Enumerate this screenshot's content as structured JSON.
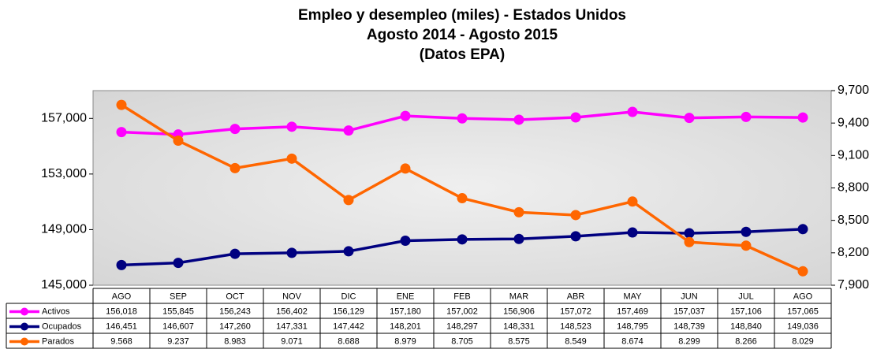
{
  "chart_data": {
    "type": "line",
    "title_lines": [
      "Empleo y desempleo (miles) - Estados Unidos",
      "Agosto 2014 - Agosto 2015",
      "(Datos EPA)"
    ],
    "categories": [
      "AGO",
      "SEP",
      "OCT",
      "NOV",
      "DIC",
      "ENE",
      "FEB",
      "MAR",
      "ABR",
      "MAY",
      "JUN",
      "JUL",
      "AGO"
    ],
    "series": [
      {
        "name": "Activos",
        "color": "#ff00ff",
        "values": [
          156018,
          155845,
          156243,
          156402,
          156129,
          157180,
          157002,
          156906,
          157072,
          157469,
          157037,
          157106,
          157065
        ],
        "value_labels": [
          "156,018",
          "155,845",
          "156,243",
          "156,402",
          "156,129",
          "157,180",
          "157,002",
          "156,906",
          "157,072",
          "157,469",
          "157,037",
          "157,106",
          "157,065"
        ]
      },
      {
        "name": "Ocupados",
        "color": "#000080",
        "values": [
          146451,
          146607,
          147260,
          147331,
          147442,
          148201,
          148297,
          148331,
          148523,
          148795,
          148739,
          148840,
          149036
        ],
        "value_labels": [
          "146,451",
          "146,607",
          "147,260",
          "147,331",
          "147,442",
          "148,201",
          "148,297",
          "148,331",
          "148,523",
          "148,795",
          "148,739",
          "148,840",
          "149,036"
        ]
      },
      {
        "name": "Parados",
        "color": "#ff6600",
        "axis": "y2",
        "values": [
          9568,
          9237,
          8983,
          9071,
          8688,
          8979,
          8705,
          8575,
          8549,
          8674,
          8299,
          8266,
          8029
        ],
        "value_labels": [
          "9.568",
          "9.237",
          "8.983",
          "9.071",
          "8.688",
          "8.979",
          "8.705",
          "8.575",
          "8.549",
          "8.674",
          "8.299",
          "8.266",
          "8.029"
        ]
      }
    ],
    "ylim": [
      145000,
      159000
    ],
    "yticks": [
      {
        "value": 145000,
        "label": "145,000"
      },
      {
        "value": 149000,
        "label": "149,000"
      },
      {
        "value": 153000,
        "label": "153,000"
      },
      {
        "value": 157000,
        "label": "157,000"
      }
    ],
    "y2lim": [
      7900,
      9700
    ],
    "y2ticks": [
      {
        "value": 7900,
        "label": "7,900"
      },
      {
        "value": 8200,
        "label": "8,200"
      },
      {
        "value": 8500,
        "label": "8,500"
      },
      {
        "value": 8800,
        "label": "8,800"
      },
      {
        "value": 9100,
        "label": "9,100"
      },
      {
        "value": 9400,
        "label": "9,400"
      },
      {
        "value": 9700,
        "label": "9,700"
      }
    ],
    "grid": false
  }
}
